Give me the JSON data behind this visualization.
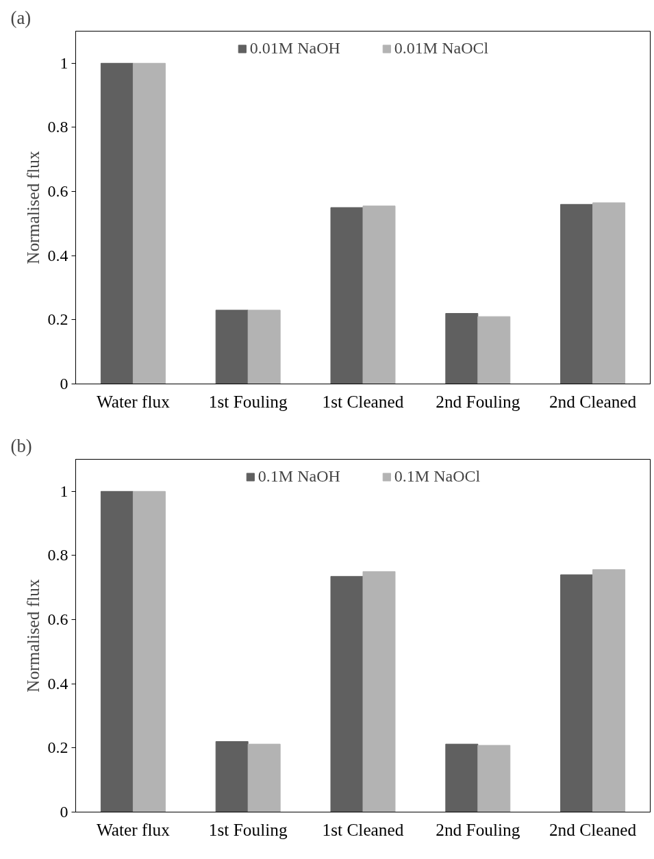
{
  "chart_data": [
    {
      "type": "bar",
      "annotations": [
        "(a)"
      ],
      "ylabel": "Normalised flux",
      "categories": [
        "Water flux",
        "1st Fouling",
        "1st Cleaned",
        "2nd Fouling",
        "2nd Cleaned"
      ],
      "series": [
        {
          "name": "0.01M NaOH",
          "color": "#606060",
          "values": [
            1,
            0.23,
            0.55,
            0.22,
            0.56
          ]
        },
        {
          "name": "0.01M NaOCl",
          "color": "#b3b3b3",
          "values": [
            1,
            0.23,
            0.555,
            0.21,
            0.565
          ]
        }
      ],
      "ylim": [
        0,
        1.1
      ],
      "yticks": [
        0,
        0.2,
        0.4,
        0.6,
        0.8,
        1
      ],
      "grid": false,
      "legend": "top"
    },
    {
      "type": "bar",
      "annotations": [
        "(b)"
      ],
      "ylabel": "Normalised flux",
      "categories": [
        "Water flux",
        "1st Fouling",
        "1st Cleaned",
        "2nd Fouling",
        "2nd Cleaned"
      ],
      "series": [
        {
          "name": "0.1M NaOH",
          "color": "#606060",
          "values": [
            1,
            0.22,
            0.735,
            0.212,
            0.74
          ]
        },
        {
          "name": "0.1M NaOCl",
          "color": "#b3b3b3",
          "values": [
            1,
            0.212,
            0.75,
            0.208,
            0.756
          ]
        }
      ],
      "ylim": [
        0,
        1.1
      ],
      "yticks": [
        0,
        0.2,
        0.4,
        0.6,
        0.8,
        1
      ],
      "grid": false,
      "legend": "top"
    }
  ]
}
